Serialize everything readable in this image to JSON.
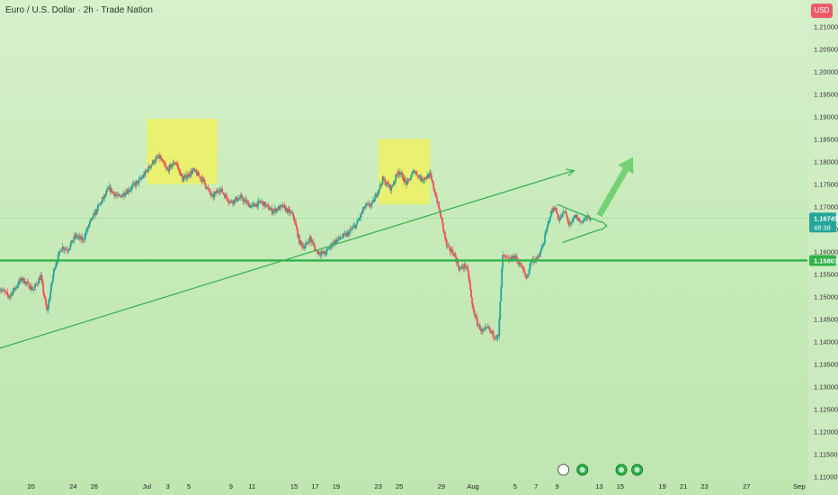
{
  "window": {
    "title": "Euro / U.S. Dollar · 2h · Trade Nation",
    "currency": "USD"
  },
  "chart_data": {
    "type": "candlestick",
    "symbol": "Euro / U.S. Dollar",
    "timeframe": "2h",
    "broker": "Trade Nation",
    "currency": "USD",
    "ylim": [
      1.1075,
      1.2145
    ],
    "y_ticks": [
      "1.21000",
      "1.20500",
      "1.20000",
      "1.19500",
      "1.19000",
      "1.18500",
      "1.18000",
      "1.17500",
      "1.17000",
      "1.16500",
      "1.16000",
      "1.15500",
      "1.15000",
      "1.14500",
      "1.14000",
      "1.13500",
      "1.13000",
      "1.12500",
      "1.12000",
      "1.11500",
      "1.11000"
    ],
    "x_ticks": [
      "20",
      "24",
      "26",
      "Jul",
      "3",
      "5",
      "9",
      "11",
      "15",
      "17",
      "19",
      "23",
      "25",
      "29",
      "Aug",
      "5",
      "7",
      "9",
      "13",
      "15",
      "19",
      "21",
      "23",
      "27",
      "Sep"
    ],
    "x_tick_days": [
      20,
      24,
      26,
      31,
      33,
      35,
      39,
      41,
      45,
      47,
      49,
      53,
      55,
      59,
      62,
      66,
      68,
      70,
      74,
      76,
      80,
      82,
      84,
      88,
      93
    ],
    "price_path": [
      {
        "day": 17.0,
        "price": 1.152
      },
      {
        "day": 18.0,
        "price": 1.15
      },
      {
        "day": 19.2,
        "price": 1.154
      },
      {
        "day": 20.3,
        "price": 1.1515
      },
      {
        "day": 21.0,
        "price": 1.1545
      },
      {
        "day": 21.6,
        "price": 1.1465
      },
      {
        "day": 22.3,
        "price": 1.1565
      },
      {
        "day": 23.0,
        "price": 1.161
      },
      {
        "day": 23.6,
        "price": 1.1605
      },
      {
        "day": 24.3,
        "price": 1.1635
      },
      {
        "day": 25.0,
        "price": 1.1625
      },
      {
        "day": 25.6,
        "price": 1.166
      },
      {
        "day": 26.5,
        "price": 1.17
      },
      {
        "day": 27.5,
        "price": 1.174
      },
      {
        "day": 28.4,
        "price": 1.172
      },
      {
        "day": 29.5,
        "price": 1.174
      },
      {
        "day": 30.5,
        "price": 1.176
      },
      {
        "day": 31.7,
        "price": 1.18
      },
      {
        "day": 32.3,
        "price": 1.181
      },
      {
        "day": 33.0,
        "price": 1.178
      },
      {
        "day": 33.8,
        "price": 1.18
      },
      {
        "day": 34.5,
        "price": 1.176
      },
      {
        "day": 35.5,
        "price": 1.178
      },
      {
        "day": 36.4,
        "price": 1.176
      },
      {
        "day": 37.3,
        "price": 1.172
      },
      {
        "day": 38.0,
        "price": 1.174
      },
      {
        "day": 39.0,
        "price": 1.171
      },
      {
        "day": 40.0,
        "price": 1.172
      },
      {
        "day": 41.0,
        "price": 1.17
      },
      {
        "day": 42.0,
        "price": 1.171
      },
      {
        "day": 43.0,
        "price": 1.169
      },
      {
        "day": 44.0,
        "price": 1.17
      },
      {
        "day": 45.0,
        "price": 1.168
      },
      {
        "day": 45.6,
        "price": 1.162
      },
      {
        "day": 46.1,
        "price": 1.161
      },
      {
        "day": 46.6,
        "price": 1.163
      },
      {
        "day": 47.2,
        "price": 1.16
      },
      {
        "day": 48.0,
        "price": 1.1595
      },
      {
        "day": 48.8,
        "price": 1.162
      },
      {
        "day": 49.5,
        "price": 1.163
      },
      {
        "day": 50.2,
        "price": 1.164
      },
      {
        "day": 51.0,
        "price": 1.166
      },
      {
        "day": 51.8,
        "price": 1.17
      },
      {
        "day": 52.5,
        "price": 1.1705
      },
      {
        "day": 53.5,
        "price": 1.176
      },
      {
        "day": 54.3,
        "price": 1.174
      },
      {
        "day": 55.0,
        "price": 1.178
      },
      {
        "day": 55.8,
        "price": 1.175
      },
      {
        "day": 56.5,
        "price": 1.178
      },
      {
        "day": 57.2,
        "price": 1.176
      },
      {
        "day": 58.0,
        "price": 1.177
      },
      {
        "day": 58.6,
        "price": 1.172
      },
      {
        "day": 59.0,
        "price": 1.168
      },
      {
        "day": 59.6,
        "price": 1.161
      },
      {
        "day": 60.3,
        "price": 1.1595
      },
      {
        "day": 60.8,
        "price": 1.156
      },
      {
        "day": 61.4,
        "price": 1.157
      },
      {
        "day": 61.7,
        "price": 1.154
      },
      {
        "day": 62.0,
        "price": 1.148
      },
      {
        "day": 62.5,
        "price": 1.144
      },
      {
        "day": 63.0,
        "price": 1.142
      },
      {
        "day": 63.5,
        "price": 1.143
      },
      {
        "day": 64.0,
        "price": 1.1415
      },
      {
        "day": 64.5,
        "price": 1.141
      },
      {
        "day": 64.7,
        "price": 1.15
      },
      {
        "day": 64.9,
        "price": 1.159
      },
      {
        "day": 65.5,
        "price": 1.158
      },
      {
        "day": 66.0,
        "price": 1.159
      },
      {
        "day": 66.6,
        "price": 1.157
      },
      {
        "day": 67.2,
        "price": 1.154
      },
      {
        "day": 67.6,
        "price": 1.158
      },
      {
        "day": 68.3,
        "price": 1.1585
      },
      {
        "day": 68.8,
        "price": 1.162
      },
      {
        "day": 69.4,
        "price": 1.168
      },
      {
        "day": 69.8,
        "price": 1.17
      },
      {
        "day": 70.3,
        "price": 1.167
      },
      {
        "day": 70.8,
        "price": 1.169
      },
      {
        "day": 71.3,
        "price": 1.1655
      },
      {
        "day": 71.8,
        "price": 1.168
      },
      {
        "day": 72.3,
        "price": 1.1665
      },
      {
        "day": 72.8,
        "price": 1.1675
      },
      {
        "day": 73.2,
        "price": 1.16745
      }
    ],
    "support_level": 1.15801,
    "current_price": 1.16745,
    "countdown": "48:38",
    "supply_zones": [
      {
        "from_day": 31.0,
        "to_day": 37.7,
        "from_price": 1.175,
        "to_price": 1.1895
      },
      {
        "from_day": 53.0,
        "to_day": 57.9,
        "from_price": 1.1705,
        "to_price": 1.185
      }
    ],
    "trendline": {
      "start": {
        "day": 17.0,
        "price": 1.1385
      },
      "end": {
        "day": 71.6,
        "price": 1.178
      }
    },
    "triangle": {
      "upper": [
        {
          "day": 70.0,
          "price": 1.1705
        },
        {
          "day": 74.2,
          "price": 1.1665
        }
      ],
      "lower": [
        {
          "day": 70.5,
          "price": 1.162
        },
        {
          "day": 74.2,
          "price": 1.165
        }
      ]
    },
    "projection_arrow": {
      "from": {
        "day": 74.0,
        "price": 1.168
      },
      "to": {
        "day": 77.2,
        "price": 1.181
      }
    },
    "grid": false,
    "colors": {
      "up": "#26a69a",
      "down": "#ef5350",
      "support": "#2fb34a",
      "lines": "#3ab354",
      "zones": "#f2f25a",
      "arrow": "#66cc66"
    }
  }
}
